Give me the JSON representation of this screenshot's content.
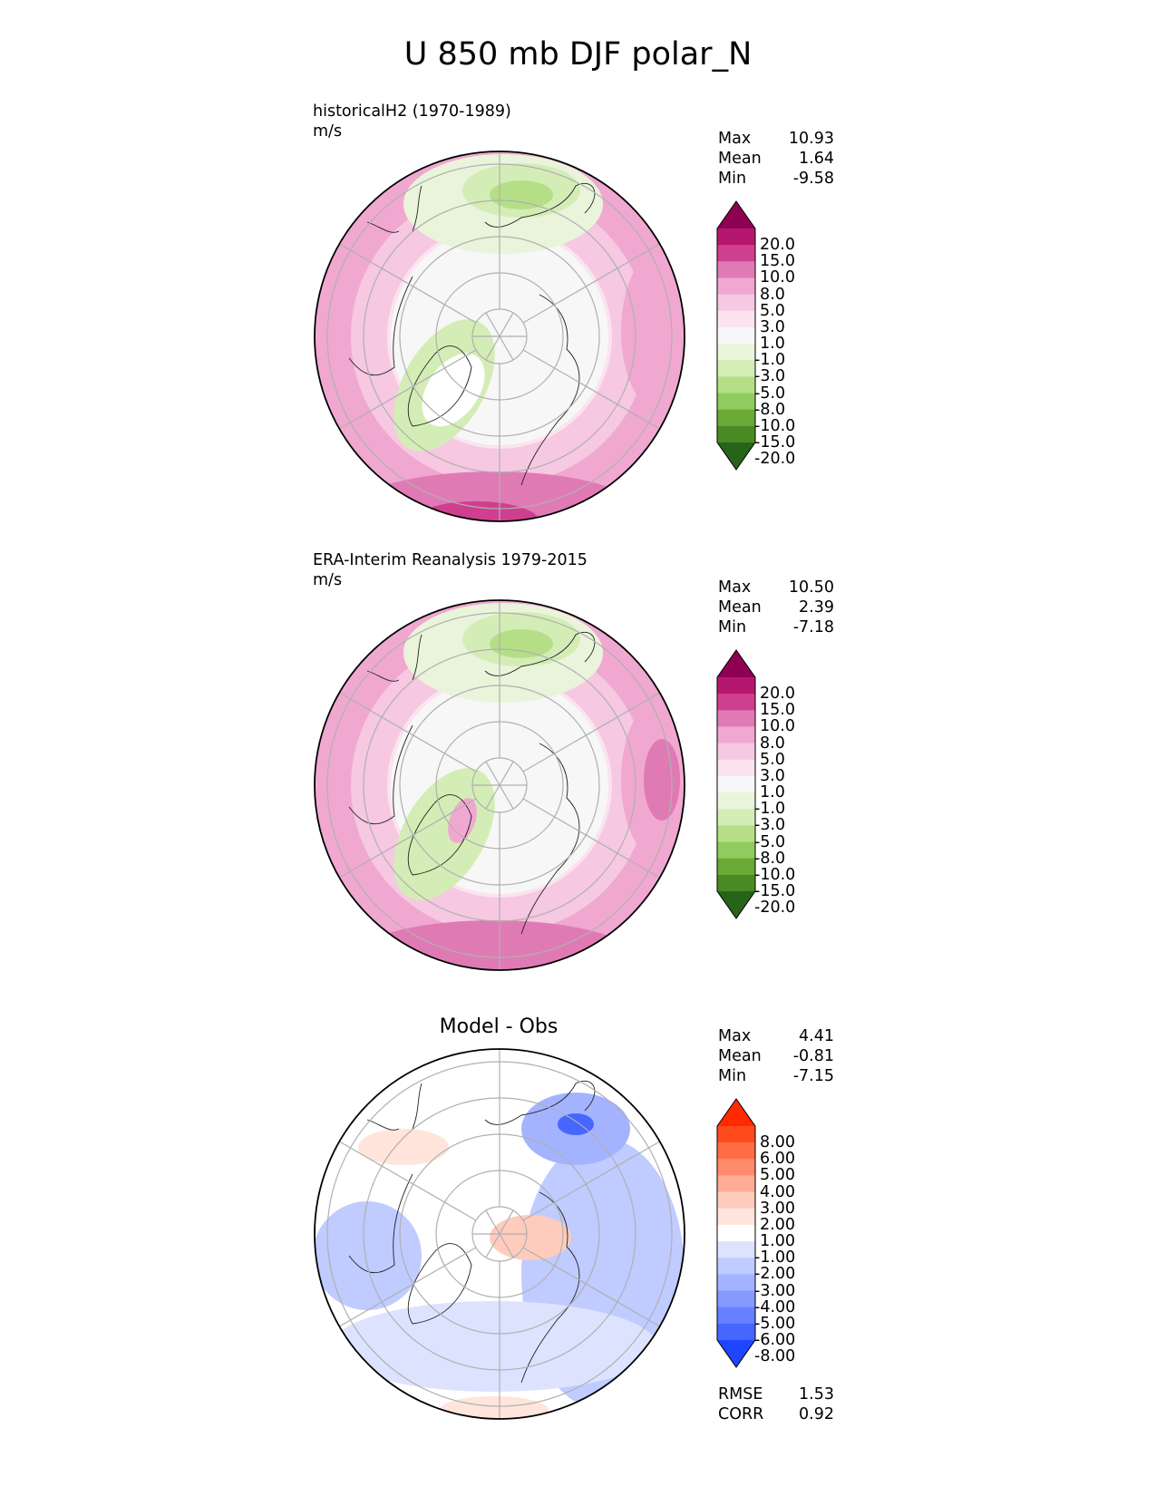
{
  "title": "U 850 mb DJF polar_N",
  "panels": [
    {
      "id": "model",
      "title_line1": "historicalH2 (1970-1989)",
      "title_line2": "m/s",
      "stats": [
        {
          "label": "Max",
          "value": "10.93"
        },
        {
          "label": "Mean",
          "value": "1.64"
        },
        {
          "label": "Min",
          "value": "-9.58"
        }
      ],
      "colorbar": "wind"
    },
    {
      "id": "obs",
      "title_line1": "ERA-Interim Reanalysis 1979-2015",
      "title_line2": "m/s",
      "stats": [
        {
          "label": "Max",
          "value": "10.50"
        },
        {
          "label": "Mean",
          "value": "2.39"
        },
        {
          "label": "Min",
          "value": "-7.18"
        }
      ],
      "colorbar": "wind"
    },
    {
      "id": "diff",
      "title_center": "Model - Obs",
      "stats": [
        {
          "label": "Max",
          "value": "4.41"
        },
        {
          "label": "Mean",
          "value": "-0.81"
        },
        {
          "label": "Min",
          "value": "-7.15"
        }
      ],
      "extra_stats": [
        {
          "label": "RMSE",
          "value": "1.53"
        },
        {
          "label": "CORR",
          "value": "0.92"
        }
      ],
      "colorbar": "diff"
    }
  ],
  "chart_data": {
    "type": "heatmap",
    "projection": "north polar stereographic",
    "variable": "U 850 mb",
    "season": "DJF",
    "units": "m/s",
    "colorbars": {
      "wind": {
        "labels": [
          "20.0",
          "15.0",
          "10.0",
          "8.0",
          "5.0",
          "3.0",
          "1.0",
          "-1.0",
          "-3.0",
          "-5.0",
          "-8.0",
          "-10.0",
          "-15.0",
          "-20.0"
        ],
        "colors": [
          "#8e0152",
          "#b5176e",
          "#cf3f8f",
          "#e07ab4",
          "#f0a8d0",
          "#f6c8e2",
          "#fbe3ef",
          "#f7f7f7",
          "#e9f4db",
          "#d4edb6",
          "#b5df87",
          "#8fcb5e",
          "#69aa37",
          "#4a8a25",
          "#276419"
        ]
      },
      "diff": {
        "labels": [
          "8.00",
          "6.00",
          "5.00",
          "4.00",
          "3.00",
          "2.00",
          "1.00",
          "-1.00",
          "-2.00",
          "-3.00",
          "-4.00",
          "-5.00",
          "-6.00",
          "-8.00"
        ],
        "colors": [
          "#ff2a00",
          "#ff4b1c",
          "#ff6d45",
          "#ff8b6c",
          "#ffac96",
          "#ffcbbd",
          "#ffe5dc",
          "#ffffff",
          "#dde3ff",
          "#c0cbff",
          "#a3b3ff",
          "#8599ff",
          "#6680ff",
          "#4566ff",
          "#1f45ff"
        ]
      }
    }
  }
}
